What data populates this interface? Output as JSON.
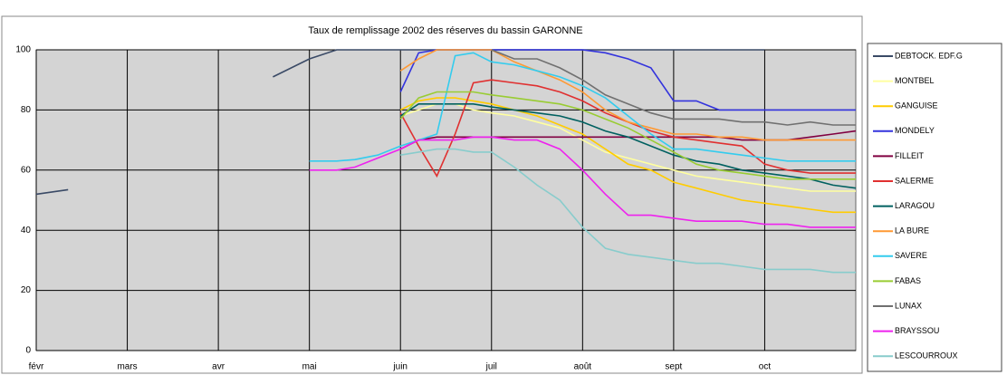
{
  "chart_data": {
    "type": "line",
    "title": "Taux de remplissage 2002 des réserves du bassin GARONNE",
    "x": [
      2,
      2.35,
      3,
      4.6,
      5,
      5.3,
      5.5,
      5.75,
      6,
      6.2,
      6.4,
      6.6,
      6.8,
      7,
      7.25,
      7.5,
      7.75,
      8,
      8.25,
      8.5,
      8.75,
      9,
      9.25,
      9.5,
      9.75,
      10,
      10.25,
      10.5,
      10.75,
      11
    ],
    "xlim": [
      2,
      11
    ],
    "xticks": [
      {
        "value": 2,
        "label": "févr"
      },
      {
        "value": 3,
        "label": "mars"
      },
      {
        "value": 4,
        "label": "avr"
      },
      {
        "value": 5,
        "label": "mai"
      },
      {
        "value": 6,
        "label": "juin"
      },
      {
        "value": 7,
        "label": "juil"
      },
      {
        "value": 8,
        "label": "août"
      },
      {
        "value": 9,
        "label": "sept"
      },
      {
        "value": 10,
        "label": "oct"
      }
    ],
    "ylim": [
      0,
      100
    ],
    "yticks": [
      0,
      20,
      40,
      60,
      80,
      100
    ],
    "grid": true,
    "series": [
      {
        "name": "DEBTOCK. EDF.G",
        "color": "#3a4a66",
        "values": [
          52,
          53.5,
          null,
          91,
          97,
          100,
          100,
          100,
          100,
          100,
          100,
          100,
          100,
          100,
          100,
          100,
          100,
          100,
          100,
          100,
          100,
          100,
          100,
          100,
          100,
          100,
          null,
          null,
          null,
          null
        ]
      },
      {
        "name": "MONTBEL",
        "color": "#ffffa0",
        "values": [
          null,
          null,
          null,
          null,
          null,
          null,
          null,
          null,
          78,
          80,
          82,
          82,
          80,
          79,
          78,
          76,
          74,
          70,
          66,
          64,
          62,
          60,
          58,
          57,
          56,
          55,
          54,
          53,
          53,
          53
        ]
      },
      {
        "name": "GANGUISE",
        "color": "#ffcc00",
        "values": [
          null,
          null,
          null,
          null,
          null,
          null,
          null,
          null,
          80,
          83,
          84,
          84,
          83,
          82,
          80,
          78,
          75,
          72,
          67,
          62,
          60,
          56,
          54,
          52,
          50,
          49,
          48,
          47,
          46,
          46
        ]
      },
      {
        "name": "MONDELY",
        "color": "#3333dd",
        "values": [
          null,
          null,
          null,
          null,
          null,
          null,
          null,
          null,
          86,
          99,
          100,
          100,
          100,
          100,
          100,
          100,
          100,
          100,
          99,
          97,
          94,
          83,
          83,
          80,
          80,
          80,
          80,
          80,
          80,
          80
        ]
      },
      {
        "name": "FILLEIT",
        "color": "#800040",
        "values": [
          null,
          null,
          null,
          null,
          null,
          null,
          null,
          null,
          67,
          70,
          71,
          71,
          71,
          71,
          71,
          71,
          71,
          71,
          71,
          71,
          71,
          71,
          71,
          71,
          70,
          70,
          70,
          71,
          72,
          73
        ]
      },
      {
        "name": "SALERME",
        "color": "#e03030",
        "values": [
          null,
          null,
          null,
          null,
          null,
          null,
          null,
          null,
          79,
          68,
          58,
          72,
          89,
          90,
          89,
          88,
          86,
          83,
          79,
          76,
          73,
          71,
          70,
          69,
          68,
          62,
          60,
          59,
          59,
          59
        ]
      },
      {
        "name": "LARAGOU",
        "color": "#006060",
        "values": [
          null,
          null,
          null,
          null,
          null,
          null,
          null,
          null,
          78,
          82,
          82,
          82,
          82,
          81,
          80,
          79,
          78,
          76,
          73,
          71,
          68,
          65,
          63,
          62,
          60,
          59,
          58,
          57,
          55,
          54
        ]
      },
      {
        "name": "LA BURE",
        "color": "#ff9933",
        "values": [
          null,
          null,
          null,
          null,
          null,
          null,
          null,
          null,
          93,
          97,
          100,
          100,
          100,
          100,
          96,
          93,
          90,
          86,
          80,
          76,
          74,
          72,
          72,
          71,
          71,
          70,
          70,
          70,
          70,
          70
        ]
      },
      {
        "name": "SAVERE",
        "color": "#33ccee",
        "values": [
          null,
          null,
          null,
          null,
          63,
          63,
          63.5,
          65,
          68,
          70,
          72,
          98,
          99,
          96,
          95,
          93,
          91,
          88,
          84,
          78,
          72,
          67,
          67,
          66,
          65,
          64,
          63,
          63,
          63,
          63
        ]
      },
      {
        "name": "FABAS",
        "color": "#99cc33",
        "values": [
          null,
          null,
          null,
          null,
          null,
          null,
          null,
          null,
          77,
          84,
          86,
          86,
          86,
          85,
          84,
          83,
          82,
          80,
          77,
          74,
          70,
          66,
          62,
          60,
          59,
          58,
          57,
          57,
          57,
          57
        ]
      },
      {
        "name": "LUNAX",
        "color": "#707070",
        "values": [
          null,
          null,
          null,
          null,
          null,
          null,
          null,
          null,
          null,
          null,
          null,
          null,
          null,
          100,
          97,
          97,
          94,
          90,
          85,
          82,
          79,
          77,
          77,
          77,
          76,
          76,
          75,
          76,
          75,
          75
        ]
      },
      {
        "name": "BRAYSSOU",
        "color": "#ee22ee",
        "values": [
          null,
          null,
          null,
          null,
          60,
          60,
          61,
          64,
          67,
          70,
          70,
          70,
          71,
          71,
          70,
          70,
          67,
          60,
          52,
          45,
          45,
          44,
          43,
          43,
          43,
          42,
          42,
          41,
          41,
          41
        ]
      },
      {
        "name": "LESCOURROUX",
        "color": "#88cccc",
        "values": [
          null,
          null,
          null,
          null,
          null,
          null,
          null,
          null,
          65,
          66,
          67,
          67,
          66,
          66,
          61,
          55,
          50,
          41,
          34,
          32,
          31,
          30,
          29,
          29,
          28,
          27,
          27,
          27,
          26,
          26
        ]
      }
    ]
  }
}
